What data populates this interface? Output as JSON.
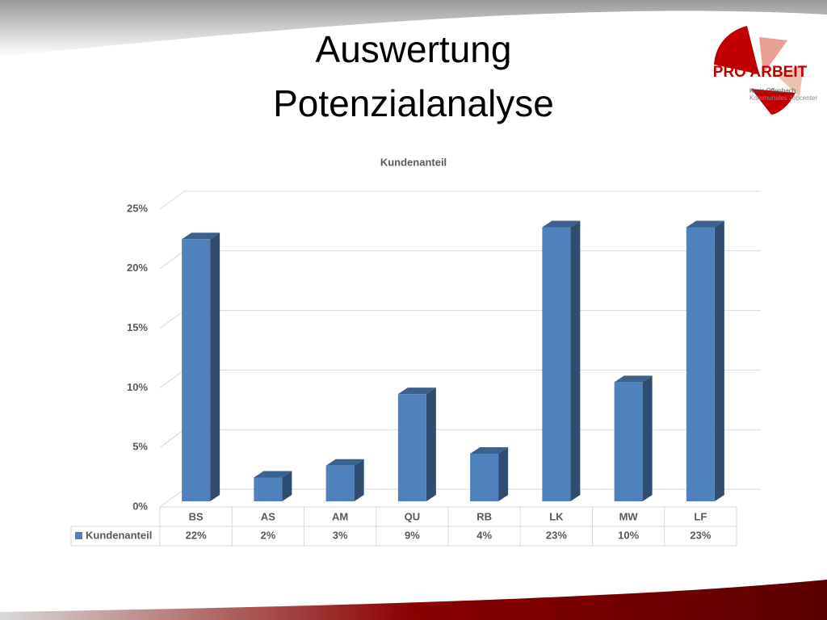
{
  "slide": {
    "title_lines": [
      "Auswertung",
      "Potenzialanalyse"
    ]
  },
  "logo": {
    "name": "PRO ARBEIT",
    "line1": "Kreis Offenbach",
    "line2": "Kommunales Jobcenter"
  },
  "chart_data": {
    "type": "bar3d",
    "title": "Kundenanteil",
    "categories": [
      "BS",
      "AS",
      "AM",
      "QU",
      "RB",
      "LK",
      "MW",
      "LF"
    ],
    "series": [
      {
        "name": "Kundenanteil",
        "color": "#4f81bd",
        "values": [
          22,
          2,
          3,
          9,
          4,
          23,
          10,
          23
        ],
        "value_labels": [
          "22%",
          "2%",
          "3%",
          "9%",
          "4%",
          "23%",
          "10%",
          "23%"
        ]
      }
    ],
    "ylim": [
      0,
      25
    ],
    "yticks": [
      {
        "value": 0,
        "label": "0%"
      },
      {
        "value": 5,
        "label": "5%"
      },
      {
        "value": 10,
        "label": "10%"
      },
      {
        "value": 15,
        "label": "15%"
      },
      {
        "value": 20,
        "label": "20%"
      },
      {
        "value": 25,
        "label": "25%"
      }
    ],
    "grid": true,
    "data_table": true
  }
}
